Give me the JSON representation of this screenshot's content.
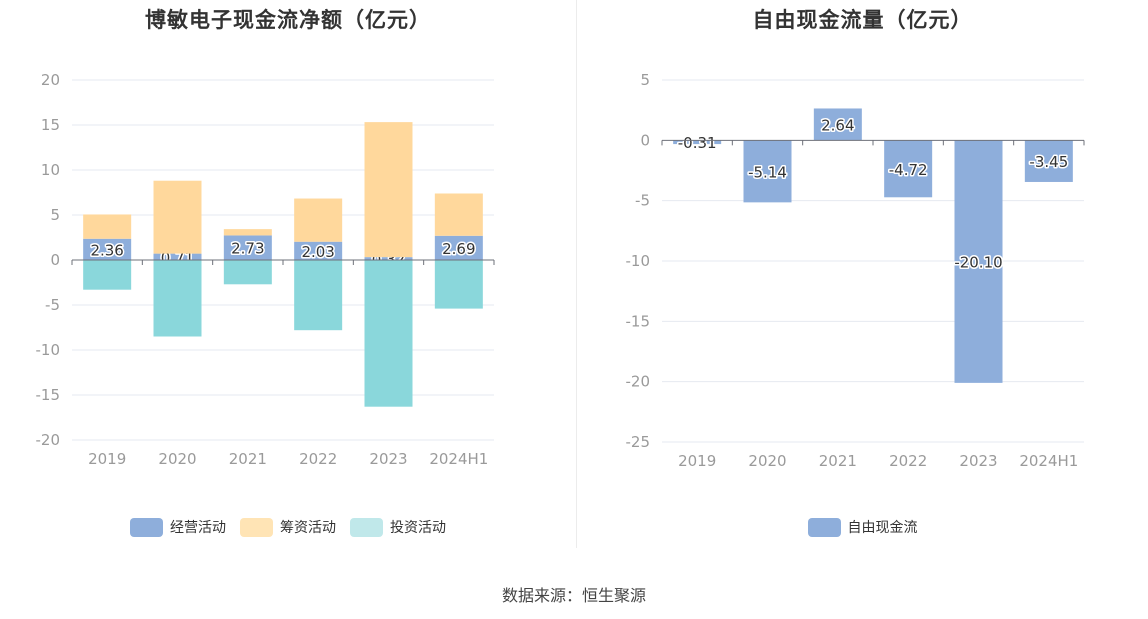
{
  "colors": {
    "operating": "#8eaedb",
    "financing": "#ffd89c",
    "investing": "#8ad7db",
    "fcf": "#8eaedb",
    "grid": "#e6e9f0",
    "axis": "#6e7079"
  },
  "chart_data": [
    {
      "type": "bar",
      "stacked": true,
      "title": "博敏电子现金流净额（亿元）",
      "categories": [
        "2019",
        "2020",
        "2021",
        "2022",
        "2023",
        "2024H1"
      ],
      "ylim": [
        -20,
        20
      ],
      "yticks": [
        20,
        15,
        10,
        5,
        0,
        -5,
        -10,
        -15,
        -20
      ],
      "grid": true,
      "legend_position": "bottom",
      "series": [
        {
          "name": "经营活动",
          "values": [
            2.36,
            0.71,
            2.73,
            2.03,
            0.32,
            2.69
          ],
          "labeled": true
        },
        {
          "name": "筹资活动",
          "values": [
            2.7,
            8.1,
            0.7,
            4.8,
            15.0,
            4.7
          ],
          "labeled": false
        },
        {
          "name": "投资活动",
          "values": [
            -3.3,
            -8.5,
            -2.7,
            -7.8,
            -16.3,
            -5.4
          ],
          "labeled": false
        }
      ]
    },
    {
      "type": "bar",
      "title": "自由现金流量（亿元）",
      "categories": [
        "2019",
        "2020",
        "2021",
        "2022",
        "2023",
        "2024H1"
      ],
      "ylim": [
        -25,
        5
      ],
      "yticks": [
        5,
        0,
        -5,
        -10,
        -15,
        -20,
        -25
      ],
      "grid": true,
      "legend_position": "bottom",
      "series": [
        {
          "name": "自由现金流",
          "values": [
            -0.31,
            -5.14,
            2.64,
            -4.72,
            -20.1,
            -3.45
          ],
          "labeled": true
        }
      ]
    }
  ],
  "legend_left": [
    "经营活动",
    "筹资活动",
    "投资活动"
  ],
  "legend_right": [
    "自由现金流"
  ],
  "source": "数据来源：恒生聚源"
}
